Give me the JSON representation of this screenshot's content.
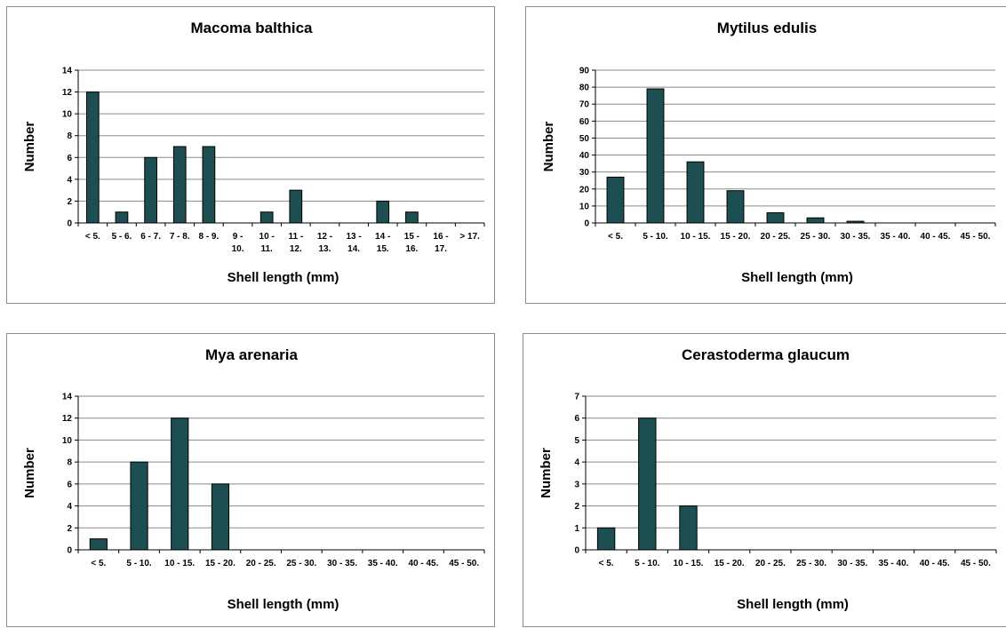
{
  "chart_data": [
    {
      "type": "bar",
      "title": "Macoma balthica",
      "xlabel": "Shell length (mm)",
      "ylabel": "Number",
      "ylim": [
        0,
        14
      ],
      "yticks": [
        0,
        2,
        4,
        6,
        8,
        10,
        12,
        14
      ],
      "grid": true,
      "categories": [
        "< 5.",
        "5 - 6.",
        "6 - 7.",
        "7 - 8.",
        "8 - 9.",
        "9 - 10.",
        "10 - 11.",
        "11 - 12.",
        "12 - 13.",
        "13 - 14.",
        "14 - 15.",
        "15 - 16.",
        "16 - 17.",
        "> 17."
      ],
      "values": [
        12,
        1,
        6,
        7,
        7,
        0,
        1,
        3,
        0,
        0,
        2,
        1,
        0,
        0
      ]
    },
    {
      "type": "bar",
      "title": "Mytilus edulis",
      "xlabel": "Shell length (mm)",
      "ylabel": "Number",
      "ylim": [
        0,
        90
      ],
      "yticks": [
        0,
        10,
        20,
        30,
        40,
        50,
        60,
        70,
        80,
        90
      ],
      "grid": true,
      "categories": [
        "< 5.",
        "5 - 10.",
        "10 - 15.",
        "15 - 20.",
        "20 - 25.",
        "25 - 30.",
        "30 - 35.",
        "35 - 40.",
        "40 - 45.",
        "45 - 50."
      ],
      "values": [
        27,
        79,
        36,
        19,
        6,
        3,
        1,
        0,
        0,
        0
      ]
    },
    {
      "type": "bar",
      "title": "Mya arenaria",
      "xlabel": "Shell length (mm)",
      "ylabel": "Number",
      "ylim": [
        0,
        14
      ],
      "yticks": [
        0,
        2,
        4,
        6,
        8,
        10,
        12,
        14
      ],
      "grid": true,
      "categories": [
        "< 5.",
        "5 - 10.",
        "10 - 15.",
        "15 - 20.",
        "20 - 25.",
        "25 - 30.",
        "30 - 35.",
        "35 - 40.",
        "40 - 45.",
        "45 - 50."
      ],
      "values": [
        1,
        8,
        12,
        6,
        0,
        0,
        0,
        0,
        0,
        0
      ]
    },
    {
      "type": "bar",
      "title": "Cerastoderma glaucum",
      "xlabel": "Shell length (mm)",
      "ylabel": "Number",
      "ylim": [
        0,
        7
      ],
      "yticks": [
        0,
        1,
        2,
        3,
        4,
        5,
        6,
        7
      ],
      "grid": true,
      "categories": [
        "< 5.",
        "5 - 10.",
        "10 - 15.",
        "15 - 20.",
        "20 - 25.",
        "25 - 30.",
        "30 - 35.",
        "35 - 40.",
        "40 - 45.",
        "45 - 50."
      ],
      "values": [
        1,
        6,
        2,
        0,
        0,
        0,
        0,
        0,
        0,
        0
      ]
    }
  ],
  "colors": {
    "bar": "#1d4f52",
    "grid": "#8a8a8a",
    "border": "#8c8c8c"
  }
}
